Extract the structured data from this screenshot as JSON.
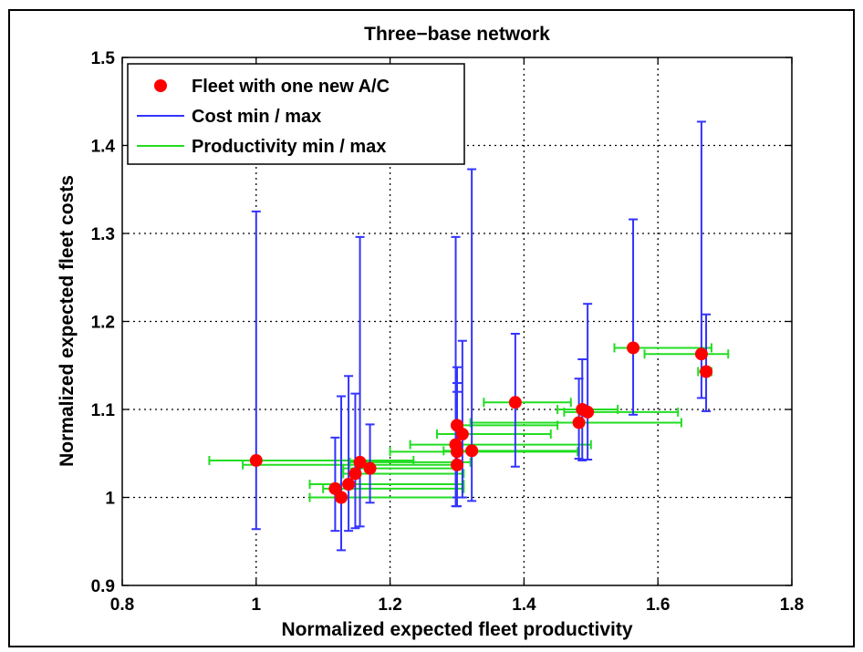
{
  "chart_data": {
    "type": "scatter",
    "title": "Three−base network",
    "xlabel": "Normalized expected fleet productivity",
    "ylabel": "Normalized expected fleet costs",
    "xlim": [
      0.8,
      1.8
    ],
    "ylim": [
      0.9,
      1.5
    ],
    "xticks": [
      0.8,
      1.0,
      1.2,
      1.4,
      1.6,
      1.8
    ],
    "xtick_labels": [
      "0.8",
      "1",
      "1.2",
      "1.4",
      "1.6",
      "1.8"
    ],
    "yticks": [
      0.9,
      1.0,
      1.1,
      1.2,
      1.3,
      1.4,
      1.5
    ],
    "ytick_labels": [
      "0.9",
      "1",
      "1.1",
      "1.2",
      "1.3",
      "1.4",
      "1.5"
    ],
    "grid": true,
    "legend_position": "top-left",
    "legend": [
      {
        "label": "Fleet with one new A/C",
        "color": "#ff0000",
        "kind": "marker"
      },
      {
        "label": "Cost min / max",
        "color": "#3333ff",
        "kind": "line"
      },
      {
        "label": "Productivity min / max",
        "color": "#22dd22",
        "kind": "line"
      }
    ],
    "series": [
      {
        "name": "Fleet with one new A/C",
        "color": "#ff0000",
        "points": [
          {
            "x": 1.0,
            "y": 1.042,
            "ylo": 0.964,
            "yhi": 1.325,
            "xlo": 0.93,
            "xhi": 1.235
          },
          {
            "x": 1.118,
            "y": 1.01,
            "ylo": 0.962,
            "yhi": 1.068,
            "xlo": 1.1,
            "xhi": 1.31
          },
          {
            "x": 1.127,
            "y": 1.0,
            "ylo": 0.94,
            "yhi": 1.115,
            "xlo": 1.08,
            "xhi": 1.3
          },
          {
            "x": 1.138,
            "y": 1.015,
            "ylo": 0.962,
            "yhi": 1.138,
            "xlo": 1.08,
            "xhi": 1.31
          },
          {
            "x": 1.148,
            "y": 1.027,
            "ylo": 0.965,
            "yhi": 1.118,
            "xlo": 1.13,
            "xhi": 1.31
          },
          {
            "x": 1.155,
            "y": 1.04,
            "ylo": 0.967,
            "yhi": 1.296,
            "xlo": 1.14,
            "xhi": 1.32
          },
          {
            "x": 1.17,
            "y": 1.033,
            "ylo": 0.994,
            "yhi": 1.083,
            "xlo": 1.13,
            "xhi": 1.3
          },
          {
            "x": 1.298,
            "y": 1.06,
            "ylo": 0.99,
            "yhi": 1.296,
            "xlo": 1.23,
            "xhi": 1.5
          },
          {
            "x": 1.3,
            "y": 1.052,
            "ylo": 0.99,
            "yhi": 1.148,
            "xlo": 1.2,
            "xhi": 1.48
          },
          {
            "x": 1.3,
            "y": 1.037,
            "ylo": 0.99,
            "yhi": 1.12,
            "xlo": 0.98,
            "xhi": 1.3
          },
          {
            "x": 1.3,
            "y": 1.082,
            "ylo": 1.0,
            "yhi": 1.13,
            "xlo": 1.3,
            "xhi": 1.45
          },
          {
            "x": 1.308,
            "y": 1.072,
            "ylo": 1.0,
            "yhi": 1.178,
            "xlo": 1.27,
            "xhi": 1.44
          },
          {
            "x": 1.322,
            "y": 1.053,
            "ylo": 0.996,
            "yhi": 1.373,
            "xlo": 1.28,
            "xhi": 1.482
          },
          {
            "x": 1.387,
            "y": 1.108,
            "ylo": 1.035,
            "yhi": 1.186,
            "xlo": 1.34,
            "xhi": 1.47
          },
          {
            "x": 1.482,
            "y": 1.085,
            "ylo": 1.044,
            "yhi": 1.135,
            "xlo": 1.32,
            "xhi": 1.635
          },
          {
            "x": 1.487,
            "y": 1.1,
            "ylo": 1.042,
            "yhi": 1.157,
            "xlo": 1.45,
            "xhi": 1.54
          },
          {
            "x": 1.495,
            "y": 1.097,
            "ylo": 1.043,
            "yhi": 1.22,
            "xlo": 1.46,
            "xhi": 1.63
          },
          {
            "x": 1.563,
            "y": 1.17,
            "ylo": 1.094,
            "yhi": 1.316,
            "xlo": 1.535,
            "xhi": 1.68
          },
          {
            "x": 1.665,
            "y": 1.163,
            "ylo": 1.113,
            "yhi": 1.427,
            "xlo": 1.58,
            "xhi": 1.705
          },
          {
            "x": 1.672,
            "y": 1.143,
            "ylo": 1.098,
            "yhi": 1.208,
            "xlo": 1.66,
            "xhi": 1.68
          }
        ]
      }
    ]
  }
}
